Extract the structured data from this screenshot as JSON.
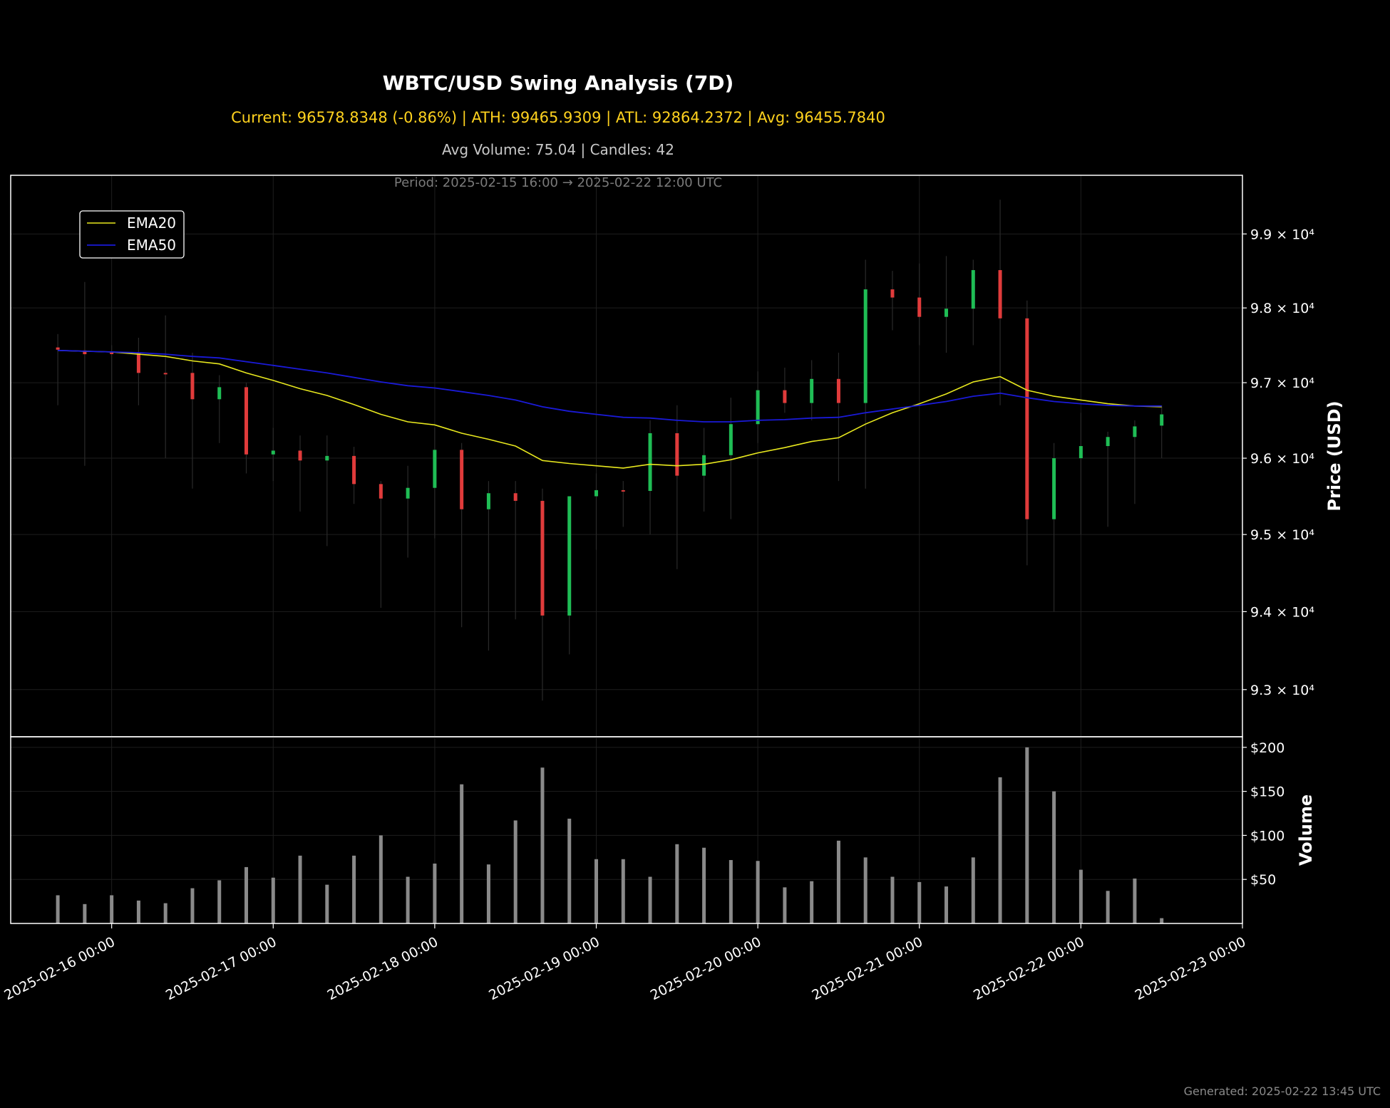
{
  "header": {
    "title": "WBTC/USD Swing Analysis (7D)",
    "stats_line": "Current: 96578.8348 (-0.86%) | ATH: 99465.9309 | ATL: 92864.2372 | Avg: 96455.7840",
    "volume_line": "Avg Volume: 75.04 | Candles: 42",
    "period_line": "Period: 2025-02-15 16:00 → 2025-02-22 12:00 UTC"
  },
  "footer": {
    "generated": "Generated: 2025-02-22 13:45 UTC"
  },
  "colors": {
    "up": "#1fbd55",
    "down": "#e03b3b",
    "ema20": "#e8e81e",
    "ema50": "#1a1ad8",
    "volume": "#8a8a8a",
    "background": "#000000",
    "grid": "#1e1e1e"
  },
  "chart_data": {
    "type": "candlestick",
    "price_axis": {
      "label": "Price (USD)",
      "scale": "log",
      "ylim": [
        92400,
        99800
      ],
      "ticks": [
        {
          "value": 93000,
          "label": "9.3 × 10⁴"
        },
        {
          "value": 94000,
          "label": "9.4 × 10⁴"
        },
        {
          "value": 95000,
          "label": "9.5 × 10⁴"
        },
        {
          "value": 96000,
          "label": "9.6 × 10⁴"
        },
        {
          "value": 97000,
          "label": "9.7 × 10⁴"
        },
        {
          "value": 98000,
          "label": "9.8 × 10⁴"
        },
        {
          "value": 99000,
          "label": "9.9 × 10⁴"
        }
      ]
    },
    "volume_axis": {
      "label": "Volume",
      "ylim": [
        0,
        212
      ],
      "ticks": [
        {
          "value": 50,
          "label": "$50"
        },
        {
          "value": 100,
          "label": "$100"
        },
        {
          "value": 150,
          "label": "$150"
        },
        {
          "value": 200,
          "label": "$200"
        }
      ]
    },
    "x_axis": {
      "xlim": [
        "2025-02-15 09:00",
        "2025-02-23 00:00"
      ],
      "ticks": [
        "2025-02-16 00:00",
        "2025-02-17 00:00",
        "2025-02-18 00:00",
        "2025-02-19 00:00",
        "2025-02-20 00:00",
        "2025-02-21 00:00",
        "2025-02-22 00:00",
        "2025-02-23 00:00"
      ]
    },
    "legend": {
      "position": "upper-left",
      "entries": [
        "EMA20",
        "EMA50"
      ]
    },
    "grid": true,
    "candles": [
      {
        "t": "2025-02-15 16:00",
        "o": 97470,
        "h": 97650,
        "l": 96700,
        "c": 97440,
        "v": 32
      },
      {
        "t": "2025-02-15 20:00",
        "o": 97430,
        "h": 98350,
        "l": 95900,
        "c": 97380,
        "v": 22
      },
      {
        "t": "2025-02-16 00:00",
        "o": 97400,
        "h": 97500,
        "l": 96900,
        "c": 97390,
        "v": 32
      },
      {
        "t": "2025-02-16 04:00",
        "o": 97400,
        "h": 97600,
        "l": 96700,
        "c": 97130,
        "v": 26
      },
      {
        "t": "2025-02-16 08:00",
        "o": 97130,
        "h": 97900,
        "l": 96000,
        "c": 97120,
        "v": 23
      },
      {
        "t": "2025-02-16 12:00",
        "o": 97130,
        "h": 97400,
        "l": 95600,
        "c": 96780,
        "v": 40
      },
      {
        "t": "2025-02-16 16:00",
        "o": 96780,
        "h": 97100,
        "l": 96200,
        "c": 96940,
        "v": 49
      },
      {
        "t": "2025-02-16 20:00",
        "o": 96940,
        "h": 97000,
        "l": 95800,
        "c": 96050,
        "v": 64
      },
      {
        "t": "2025-02-17 00:00",
        "o": 96050,
        "h": 96400,
        "l": 95700,
        "c": 96100,
        "v": 52
      },
      {
        "t": "2025-02-17 04:00",
        "o": 96100,
        "h": 96300,
        "l": 95300,
        "c": 95970,
        "v": 77
      },
      {
        "t": "2025-02-17 08:00",
        "o": 95970,
        "h": 96300,
        "l": 94850,
        "c": 96030,
        "v": 44
      },
      {
        "t": "2025-02-17 12:00",
        "o": 96030,
        "h": 96150,
        "l": 95400,
        "c": 95660,
        "v": 77
      },
      {
        "t": "2025-02-17 16:00",
        "o": 95660,
        "h": 95700,
        "l": 94050,
        "c": 95470,
        "v": 100
      },
      {
        "t": "2025-02-17 20:00",
        "o": 95470,
        "h": 95900,
        "l": 94700,
        "c": 95610,
        "v": 53
      },
      {
        "t": "2025-02-18 00:00",
        "o": 95610,
        "h": 96400,
        "l": 94950,
        "c": 96110,
        "v": 68
      },
      {
        "t": "2025-02-18 04:00",
        "o": 96110,
        "h": 96200,
        "l": 93800,
        "c": 95330,
        "v": 158
      },
      {
        "t": "2025-02-18 08:00",
        "o": 95330,
        "h": 95700,
        "l": 93500,
        "c": 95540,
        "v": 67
      },
      {
        "t": "2025-02-18 12:00",
        "o": 95540,
        "h": 95700,
        "l": 93900,
        "c": 95440,
        "v": 117
      },
      {
        "t": "2025-02-18 16:00",
        "o": 95440,
        "h": 95600,
        "l": 92860,
        "c": 93950,
        "v": 177
      },
      {
        "t": "2025-02-18 20:00",
        "o": 93950,
        "h": 95500,
        "l": 93450,
        "c": 95500,
        "v": 119
      },
      {
        "t": "2025-02-19 00:00",
        "o": 95500,
        "h": 95800,
        "l": 94800,
        "c": 95580,
        "v": 73
      },
      {
        "t": "2025-02-19 04:00",
        "o": 95580,
        "h": 95700,
        "l": 95100,
        "c": 95570,
        "v": 73
      },
      {
        "t": "2025-02-19 08:00",
        "o": 95570,
        "h": 96500,
        "l": 95000,
        "c": 96330,
        "v": 53
      },
      {
        "t": "2025-02-19 12:00",
        "o": 96330,
        "h": 96700,
        "l": 94550,
        "c": 95770,
        "v": 90
      },
      {
        "t": "2025-02-19 16:00",
        "o": 95770,
        "h": 96400,
        "l": 95300,
        "c": 96040,
        "v": 86
      },
      {
        "t": "2025-02-19 20:00",
        "o": 96040,
        "h": 96800,
        "l": 95200,
        "c": 96450,
        "v": 72
      },
      {
        "t": "2025-02-20 00:00",
        "o": 96450,
        "h": 97150,
        "l": 96200,
        "c": 96900,
        "v": 71
      },
      {
        "t": "2025-02-20 04:00",
        "o": 96900,
        "h": 97200,
        "l": 96600,
        "c": 96730,
        "v": 41
      },
      {
        "t": "2025-02-20 08:00",
        "o": 96730,
        "h": 97300,
        "l": 96500,
        "c": 97050,
        "v": 48
      },
      {
        "t": "2025-02-20 12:00",
        "o": 97050,
        "h": 97400,
        "l": 95700,
        "c": 96730,
        "v": 94
      },
      {
        "t": "2025-02-20 16:00",
        "o": 96730,
        "h": 98650,
        "l": 95600,
        "c": 98250,
        "v": 75
      },
      {
        "t": "2025-02-20 20:00",
        "o": 98250,
        "h": 98500,
        "l": 97700,
        "c": 98140,
        "v": 53
      },
      {
        "t": "2025-02-21 00:00",
        "o": 98140,
        "h": 98600,
        "l": 97500,
        "c": 97880,
        "v": 47
      },
      {
        "t": "2025-02-21 04:00",
        "o": 97880,
        "h": 98700,
        "l": 97400,
        "c": 97990,
        "v": 42
      },
      {
        "t": "2025-02-21 08:00",
        "o": 97990,
        "h": 98650,
        "l": 97500,
        "c": 98510,
        "v": 75
      },
      {
        "t": "2025-02-21 12:00",
        "o": 98510,
        "h": 99466,
        "l": 96700,
        "c": 97860,
        "v": 166
      },
      {
        "t": "2025-02-21 16:00",
        "o": 97860,
        "h": 98100,
        "l": 94600,
        "c": 95200,
        "v": 200
      },
      {
        "t": "2025-02-21 20:00",
        "o": 95200,
        "h": 96200,
        "l": 94000,
        "c": 96000,
        "v": 150
      },
      {
        "t": "2025-02-22 00:00",
        "o": 96000,
        "h": 96600,
        "l": 95000,
        "c": 96160,
        "v": 61
      },
      {
        "t": "2025-02-22 04:00",
        "o": 96160,
        "h": 96350,
        "l": 95100,
        "c": 96280,
        "v": 37
      },
      {
        "t": "2025-02-22 08:00",
        "o": 96280,
        "h": 96500,
        "l": 95400,
        "c": 96420,
        "v": 51
      },
      {
        "t": "2025-02-22 12:00",
        "o": 96430,
        "h": 96700,
        "l": 96000,
        "c": 96579,
        "v": 6
      }
    ],
    "ema20": [
      97430,
      97420,
      97410,
      97380,
      97350,
      97290,
      97250,
      97130,
      97030,
      96920,
      96830,
      96710,
      96580,
      96480,
      96440,
      96330,
      96250,
      96160,
      95970,
      95930,
      95900,
      95870,
      95920,
      95900,
      95920,
      95980,
      96070,
      96140,
      96220,
      96270,
      96450,
      96600,
      96720,
      96850,
      97010,
      97080,
      96900,
      96820,
      96770,
      96720,
      96690,
      96680
    ],
    "ema50": [
      97430,
      97420,
      97410,
      97400,
      97380,
      97350,
      97330,
      97280,
      97230,
      97180,
      97130,
      97070,
      97010,
      96960,
      96930,
      96880,
      96830,
      96770,
      96680,
      96620,
      96580,
      96540,
      96530,
      96500,
      96480,
      96480,
      96500,
      96510,
      96530,
      96540,
      96600,
      96650,
      96700,
      96750,
      96820,
      96860,
      96800,
      96750,
      96720,
      96700,
      96690,
      96690
    ]
  }
}
